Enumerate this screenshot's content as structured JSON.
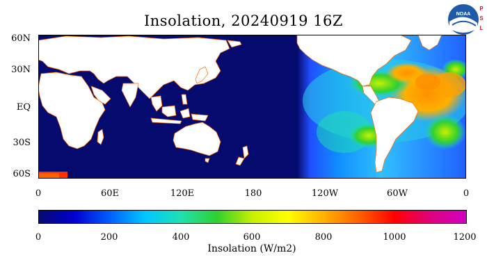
{
  "title": "Insolation, 20240919 16Z",
  "logo": {
    "icon": "noaa-psl-logo",
    "noaa_text": "NOAA",
    "psl_text": "P S L"
  },
  "map": {
    "y_ticks": [
      "60N",
      "30N",
      "EQ",
      "30S",
      "60S"
    ],
    "x_ticks": [
      "0",
      "60E",
      "120E",
      "180",
      "120W",
      "60W",
      "0"
    ],
    "land_color": "#ffffff",
    "night_color": "#050a6e"
  },
  "colorbar": {
    "min": 0,
    "max": 1200,
    "ticks": [
      "0",
      "200",
      "400",
      "600",
      "800",
      "1000",
      "1200"
    ],
    "label": "Insolation (W/m2)",
    "colors": [
      "#050a6e",
      "#0000d0",
      "#0060ff",
      "#00c8ff",
      "#20e0b0",
      "#30d030",
      "#c8f000",
      "#ffff00",
      "#ffb000",
      "#ff6000",
      "#ff0000",
      "#e00080",
      "#d000c0"
    ]
  }
}
